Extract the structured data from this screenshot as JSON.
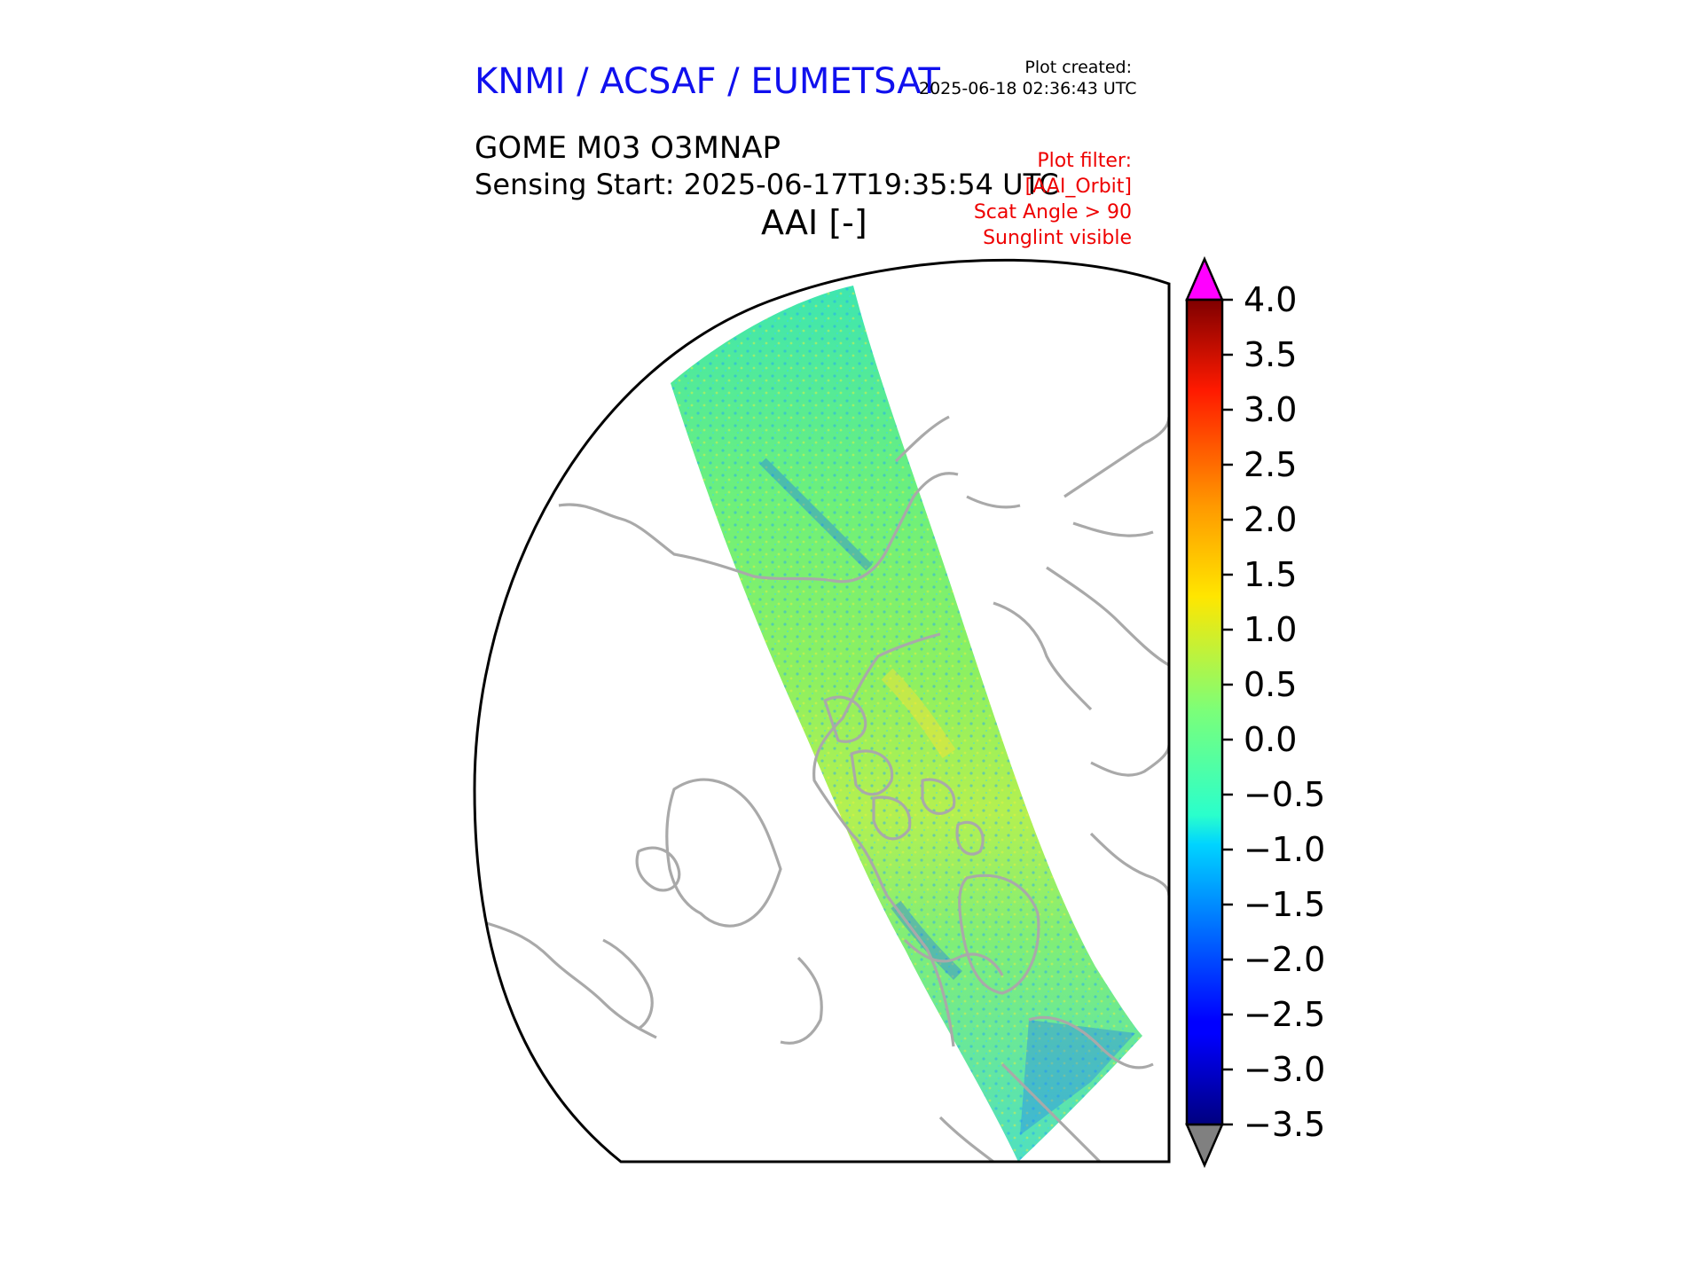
{
  "header": {
    "organization": "KNMI / ACSAF / EUMETSAT",
    "created_label": "Plot created:",
    "created_time": "2025-06-18 02:36:43 UTC",
    "product": "GOME M03 O3MNAP",
    "sensing_start": "Sensing Start: 2025-06-17T19:35:54 UTC",
    "variable": "AAI [-]"
  },
  "plot_filter": [
    "Plot filter:",
    "[AAI_Orbit]",
    "Scat Angle > 90",
    "Sunglint visible"
  ],
  "colorbar": {
    "ticks": [
      "4.0",
      "3.5",
      "3.0",
      "2.5",
      "2.0",
      "1.5",
      "1.0",
      "0.5",
      "0.0",
      "−0.5",
      "−1.0",
      "−1.5",
      "−2.0",
      "−2.5",
      "−3.0",
      "−3.5"
    ],
    "tick_values": [
      4.0,
      3.5,
      3.0,
      2.5,
      2.0,
      1.5,
      1.0,
      0.5,
      0.0,
      -0.5,
      -1.0,
      -1.5,
      -2.0,
      -2.5,
      -3.0,
      -3.5
    ],
    "range": [
      -3.5,
      4.0
    ],
    "colormap": "jet",
    "over_color": "#ff00ff",
    "under_color": "#808080"
  },
  "map": {
    "projection": "north polar stereographic",
    "coastline_color": "#a9a9a9",
    "swath_dominant_value_range": [
      -1.0,
      1.5
    ]
  }
}
